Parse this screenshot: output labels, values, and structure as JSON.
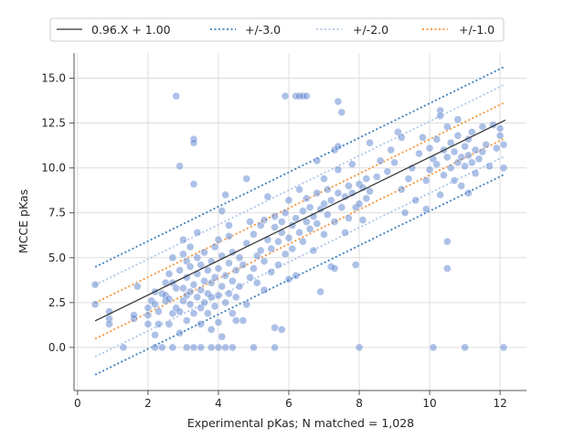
{
  "chart_data": {
    "type": "scatter",
    "xlabel": "Experimental pKas; N matched = 1,028",
    "ylabel": "MCCE pKas",
    "xlim": [
      -0.1,
      12.75
    ],
    "ylim": [
      -2.4,
      16.4
    ],
    "xticks": [
      0,
      2,
      4,
      6,
      8,
      10,
      12
    ],
    "yticks": [
      0.0,
      2.5,
      5.0,
      7.5,
      10.0,
      12.5,
      15.0
    ],
    "xtick_labels": [
      "0",
      "2",
      "4",
      "6",
      "8",
      "10",
      "12"
    ],
    "ytick_labels": [
      "0.0",
      "2.5",
      "5.0",
      "7.5",
      "10.0",
      "12.5",
      "15.0"
    ],
    "grid": true,
    "legend_position": "top",
    "fit": {
      "slope": 0.96,
      "intercept": 1.0,
      "x_range": [
        0.5,
        12.15
      ],
      "color": "#333333"
    },
    "bands": [
      {
        "offset": 3.0,
        "color": "#3b7fbf"
      },
      {
        "offset": 2.0,
        "color": "#aec7e8"
      },
      {
        "offset": 1.0,
        "color": "#f79339"
      }
    ],
    "legend": [
      "0.96.X + 1.00",
      "+/-3.0",
      "+/-2.0",
      "+/-1.0"
    ],
    "point_color": "#5b84d0",
    "points": [
      [
        0.5,
        3.5
      ],
      [
        0.5,
        2.4
      ],
      [
        0.9,
        2.0
      ],
      [
        0.9,
        1.6
      ],
      [
        0.9,
        1.3
      ],
      [
        1.3,
        0.0
      ],
      [
        1.6,
        1.6
      ],
      [
        1.6,
        1.8
      ],
      [
        1.7,
        3.4
      ],
      [
        2.0,
        1.8
      ],
      [
        2.0,
        1.3
      ],
      [
        2.0,
        2.2
      ],
      [
        2.1,
        2.6
      ],
      [
        2.2,
        2.4
      ],
      [
        2.2,
        3.1
      ],
      [
        2.2,
        0.7
      ],
      [
        2.2,
        0.0
      ],
      [
        2.3,
        2.0
      ],
      [
        2.3,
        1.3
      ],
      [
        2.4,
        0.0
      ],
      [
        2.4,
        3.0
      ],
      [
        2.5,
        2.6
      ],
      [
        2.5,
        2.9
      ],
      [
        2.5,
        3.6
      ],
      [
        2.6,
        2.7
      ],
      [
        2.6,
        4.1
      ],
      [
        2.6,
        1.3
      ],
      [
        2.7,
        1.9
      ],
      [
        2.7,
        5.0
      ],
      [
        2.7,
        3.6
      ],
      [
        2.7,
        0.0
      ],
      [
        2.8,
        2.2
      ],
      [
        2.8,
        3.3
      ],
      [
        2.8,
        14.0
      ],
      [
        2.9,
        10.1
      ],
      [
        2.9,
        2.0
      ],
      [
        2.9,
        4.3
      ],
      [
        2.9,
        0.8
      ],
      [
        3.0,
        2.6
      ],
      [
        3.0,
        3.3
      ],
      [
        3.0,
        5.2
      ],
      [
        3.0,
        6.0
      ],
      [
        3.1,
        1.5
      ],
      [
        3.1,
        0.0
      ],
      [
        3.1,
        2.9
      ],
      [
        3.1,
        3.9
      ],
      [
        3.1,
        4.8
      ],
      [
        3.2,
        2.4
      ],
      [
        3.2,
        3.1
      ],
      [
        3.2,
        4.5
      ],
      [
        3.2,
        5.6
      ],
      [
        3.3,
        11.6
      ],
      [
        3.3,
        11.4
      ],
      [
        3.3,
        9.1
      ],
      [
        3.3,
        1.9
      ],
      [
        3.3,
        3.5
      ],
      [
        3.3,
        0.0
      ],
      [
        3.4,
        2.8
      ],
      [
        3.4,
        4.1
      ],
      [
        3.4,
        5.0
      ],
      [
        3.4,
        6.4
      ],
      [
        3.5,
        3.2
      ],
      [
        3.5,
        1.3
      ],
      [
        3.5,
        0.0
      ],
      [
        3.5,
        2.2
      ],
      [
        3.5,
        4.6
      ],
      [
        3.6,
        3.7
      ],
      [
        3.6,
        2.5
      ],
      [
        3.6,
        5.3
      ],
      [
        3.7,
        1.9
      ],
      [
        3.7,
        4.3
      ],
      [
        3.7,
        3.0
      ],
      [
        3.8,
        2.8
      ],
      [
        3.8,
        3.6
      ],
      [
        3.8,
        4.8
      ],
      [
        3.8,
        0.0
      ],
      [
        3.8,
        1.0
      ],
      [
        3.9,
        5.6
      ],
      [
        3.9,
        2.3
      ],
      [
        3.9,
        3.9
      ],
      [
        4.0,
        4.4
      ],
      [
        4.0,
        2.9
      ],
      [
        4.0,
        0.0
      ],
      [
        4.0,
        6.0
      ],
      [
        4.0,
        1.4
      ],
      [
        4.1,
        3.4
      ],
      [
        4.1,
        5.1
      ],
      [
        4.1,
        7.6
      ],
      [
        4.1,
        0.6
      ],
      [
        4.2,
        4.0
      ],
      [
        4.2,
        2.5
      ],
      [
        4.2,
        0.0
      ],
      [
        4.2,
        8.5
      ],
      [
        4.3,
        3.0
      ],
      [
        4.3,
        4.7
      ],
      [
        4.3,
        6.2
      ],
      [
        4.3,
        6.8
      ],
      [
        4.4,
        3.7
      ],
      [
        4.4,
        5.3
      ],
      [
        4.4,
        1.9
      ],
      [
        4.4,
        0.0
      ],
      [
        4.5,
        4.3
      ],
      [
        4.5,
        2.8
      ],
      [
        4.5,
        1.5
      ],
      [
        4.6,
        5.0
      ],
      [
        4.6,
        3.4
      ],
      [
        4.7,
        4.6
      ],
      [
        4.7,
        1.5
      ],
      [
        4.8,
        2.4
      ],
      [
        4.8,
        5.8
      ],
      [
        4.8,
        9.4
      ],
      [
        4.9,
        3.9
      ],
      [
        4.9,
        7.0
      ],
      [
        5.0,
        4.4
      ],
      [
        5.0,
        6.3
      ],
      [
        5.0,
        0.0
      ],
      [
        5.1,
        5.1
      ],
      [
        5.1,
        3.6
      ],
      [
        5.2,
        6.8
      ],
      [
        5.2,
        5.4
      ],
      [
        5.3,
        7.1
      ],
      [
        5.3,
        4.8
      ],
      [
        5.3,
        3.2
      ],
      [
        5.4,
        8.4
      ],
      [
        5.4,
        6.0
      ],
      [
        5.5,
        5.5
      ],
      [
        5.5,
        4.2
      ],
      [
        5.6,
        6.7
      ],
      [
        5.6,
        7.3
      ],
      [
        5.6,
        0.0
      ],
      [
        5.6,
        1.1
      ],
      [
        5.7,
        5.9
      ],
      [
        5.7,
        4.6
      ],
      [
        5.8,
        7.0
      ],
      [
        5.8,
        6.4
      ],
      [
        5.8,
        1.0
      ],
      [
        5.9,
        14.0
      ],
      [
        5.9,
        7.5
      ],
      [
        5.9,
        5.2
      ],
      [
        6.0,
        6.1
      ],
      [
        6.0,
        3.8
      ],
      [
        6.0,
        8.2
      ],
      [
        6.1,
        6.8
      ],
      [
        6.1,
        5.5
      ],
      [
        6.2,
        14.0
      ],
      [
        6.2,
        7.2
      ],
      [
        6.2,
        4.0
      ],
      [
        6.3,
        8.8
      ],
      [
        6.3,
        6.4
      ],
      [
        6.3,
        14.0
      ],
      [
        6.4,
        7.6
      ],
      [
        6.4,
        5.9
      ],
      [
        6.4,
        14.0
      ],
      [
        6.5,
        7.0
      ],
      [
        6.5,
        8.3
      ],
      [
        6.5,
        14.0
      ],
      [
        6.6,
        6.6
      ],
      [
        6.6,
        7.8
      ],
      [
        6.7,
        7.3
      ],
      [
        6.7,
        5.4
      ],
      [
        6.8,
        8.6
      ],
      [
        6.8,
        10.4
      ],
      [
        6.8,
        6.9
      ],
      [
        6.9,
        7.7
      ],
      [
        6.9,
        3.1
      ],
      [
        7.0,
        8.0
      ],
      [
        7.0,
        6.3
      ],
      [
        7.0,
        9.4
      ],
      [
        7.1,
        7.4
      ],
      [
        7.1,
        8.8
      ],
      [
        7.2,
        8.2
      ],
      [
        7.2,
        4.5
      ],
      [
        7.3,
        7.0
      ],
      [
        7.3,
        4.4
      ],
      [
        7.3,
        11.0
      ],
      [
        7.4,
        8.6
      ],
      [
        7.4,
        11.2
      ],
      [
        7.4,
        13.7
      ],
      [
        7.4,
        9.9
      ],
      [
        7.5,
        7.8
      ],
      [
        7.5,
        13.1
      ],
      [
        7.6,
        8.4
      ],
      [
        7.6,
        6.4
      ],
      [
        7.7,
        9.0
      ],
      [
        7.7,
        7.2
      ],
      [
        7.8,
        8.6
      ],
      [
        7.8,
        10.2
      ],
      [
        7.9,
        7.8
      ],
      [
        7.9,
        4.6
      ],
      [
        8.0,
        9.1
      ],
      [
        8.0,
        8.0
      ],
      [
        8.0,
        0.0
      ],
      [
        8.1,
        8.9
      ],
      [
        8.1,
        7.1
      ],
      [
        8.2,
        9.4
      ],
      [
        8.2,
        8.3
      ],
      [
        8.3,
        11.4
      ],
      [
        8.3,
        8.7
      ],
      [
        8.5,
        9.5
      ],
      [
        8.6,
        10.4
      ],
      [
        8.8,
        9.8
      ],
      [
        8.9,
        11.0
      ],
      [
        9.0,
        10.3
      ],
      [
        9.1,
        12.0
      ],
      [
        9.2,
        8.8
      ],
      [
        9.2,
        11.7
      ],
      [
        9.3,
        7.5
      ],
      [
        9.4,
        9.4
      ],
      [
        9.5,
        10.0
      ],
      [
        9.6,
        8.2
      ],
      [
        9.7,
        10.8
      ],
      [
        9.8,
        11.7
      ],
      [
        9.9,
        9.3
      ],
      [
        9.9,
        7.7
      ],
      [
        10.0,
        11.1
      ],
      [
        10.0,
        9.9
      ],
      [
        10.1,
        10.5
      ],
      [
        10.1,
        0.0
      ],
      [
        10.2,
        11.6
      ],
      [
        10.2,
        10.2
      ],
      [
        10.3,
        8.5
      ],
      [
        10.3,
        13.2
      ],
      [
        10.3,
        12.9
      ],
      [
        10.4,
        11.0
      ],
      [
        10.4,
        9.6
      ],
      [
        10.5,
        10.6
      ],
      [
        10.5,
        12.3
      ],
      [
        10.5,
        5.9
      ],
      [
        10.5,
        4.4
      ],
      [
        10.6,
        11.4
      ],
      [
        10.6,
        10.0
      ],
      [
        10.7,
        10.9
      ],
      [
        10.7,
        9.3
      ],
      [
        10.8,
        11.8
      ],
      [
        10.8,
        10.3
      ],
      [
        10.8,
        12.7
      ],
      [
        10.9,
        10.6
      ],
      [
        10.9,
        9.0
      ],
      [
        11.0,
        11.2
      ],
      [
        11.0,
        10.1
      ],
      [
        11.0,
        0.0
      ],
      [
        11.1,
        11.6
      ],
      [
        11.1,
        10.7
      ],
      [
        11.1,
        8.6
      ],
      [
        11.2,
        10.3
      ],
      [
        11.2,
        12.0
      ],
      [
        11.3,
        11.0
      ],
      [
        11.3,
        9.7
      ],
      [
        11.4,
        10.5
      ],
      [
        11.5,
        12.3
      ],
      [
        11.5,
        10.9
      ],
      [
        11.6,
        11.3
      ],
      [
        11.7,
        10.1
      ],
      [
        11.8,
        12.4
      ],
      [
        11.9,
        11.1
      ],
      [
        12.0,
        11.8
      ],
      [
        12.1,
        11.3
      ],
      [
        12.1,
        10.0
      ],
      [
        12.1,
        0.0
      ],
      [
        12.0,
        12.2
      ]
    ]
  }
}
